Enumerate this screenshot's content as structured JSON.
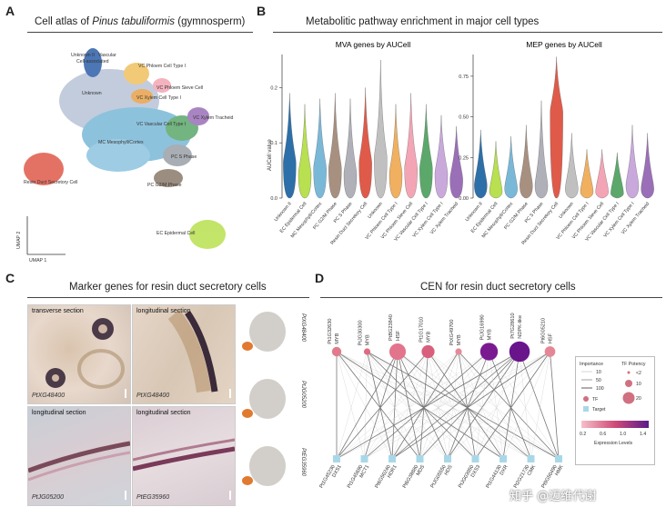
{
  "panel_a": {
    "letter": "A",
    "title_prefix": "Cell atlas of ",
    "title_italic": "Pinus tabuliformis",
    "title_suffix": " (gymnosperm)",
    "axis_y": "UMAP 2",
    "axis_x": "UMAP 1",
    "clusters": [
      {
        "label": "Unknown II",
        "color": "#2d5fa8"
      },
      {
        "label": "Vascular",
        "color": "#2d5fa8"
      },
      {
        "label": "Cell-associated",
        "color": "#2d5fa8"
      },
      {
        "label": "Unknown",
        "color": "#b8c4d6"
      },
      {
        "label": "VC Phloem Cell Type I",
        "color": "#f0c060"
      },
      {
        "label": "VC Phloem Sieve Cell",
        "color": "#f3a5b5"
      },
      {
        "label": "VC Xylem Cell Type I",
        "color": "#e7a04a"
      },
      {
        "label": "VC Xylem Tracheid",
        "color": "#9b6fb8"
      },
      {
        "label": "VC Vascular Cell Type I",
        "color": "#5ba86a"
      },
      {
        "label": "MC Mesophyll/Cortex",
        "color": "#7ab8d8"
      },
      {
        "label": "PC S Phase",
        "color": "#9aa0a6"
      },
      {
        "label": "PC G2/M Phase",
        "color": "#8a7a6a"
      },
      {
        "label": "Resin Duct Secretory Cell",
        "color": "#e05a4a"
      },
      {
        "label": "EC Epidermal Cell",
        "color": "#b8e050"
      }
    ]
  },
  "panel_b": {
    "letter": "B",
    "title": "Metabolitic pathway enrichment in major cell types",
    "ylabel": "AUCell value",
    "chart_data": [
      {
        "type": "violin",
        "title": "MVA genes by AUCell",
        "ylim": [
          0,
          0.25
        ],
        "yticks": [
          "0.0",
          "0.1",
          "0.2"
        ],
        "categories": [
          "Unknown II",
          "EC Epidermal Cell",
          "MC Mesophyll/Cortex",
          "PC G2/M Phase",
          "PC S Phase",
          "Resin Duct Secretory Cell",
          "Unknown",
          "VC Phloem Cell Type I",
          "VC Phloem Sieve Cell",
          "VC Vascular Cell Type I",
          "VC Xylem Cell Type I",
          "VC Xylem Tracheid"
        ],
        "max": [
          0.19,
          0.17,
          0.18,
          0.19,
          0.18,
          0.2,
          0.25,
          0.17,
          0.19,
          0.17,
          0.15,
          0.13
        ],
        "center": [
          0.07,
          0.05,
          0.06,
          0.06,
          0.05,
          0.07,
          0.08,
          0.05,
          0.06,
          0.06,
          0.05,
          0.04
        ],
        "colors": [
          "#2d6fa8",
          "#b8e050",
          "#7ab8d8",
          "#a89080",
          "#b0b0b8",
          "#e05a4a",
          "#c0c0c0",
          "#f0b060",
          "#f3a5b5",
          "#5ba86a",
          "#c9a9dc",
          "#9b6fb8"
        ]
      },
      {
        "type": "violin",
        "title": "MEP genes by AUCell",
        "ylim": [
          0,
          0.85
        ],
        "yticks": [
          "0.00",
          "0.25",
          "0.50",
          "0.75"
        ],
        "categories": [
          "Unknown II",
          "EC Epidermal Cell",
          "MC Mesophyll/Cortex",
          "PC G2/M Phase",
          "PC S Phase",
          "Resin Duct Secretory Cell",
          "Unknown",
          "VC Phloem Cell Type I",
          "VC Phloem Sieve Cell",
          "VC Vascular Cell Type I",
          "VC Xylem Cell Type I",
          "VC Xylem Tracheid"
        ],
        "max": [
          0.42,
          0.35,
          0.38,
          0.45,
          0.6,
          0.87,
          0.4,
          0.3,
          0.3,
          0.28,
          0.45,
          0.4
        ],
        "center": [
          0.1,
          0.06,
          0.08,
          0.1,
          0.1,
          0.55,
          0.08,
          0.06,
          0.06,
          0.05,
          0.1,
          0.08
        ],
        "colors": [
          "#2d6fa8",
          "#b8e050",
          "#7ab8d8",
          "#a89080",
          "#b0b0b8",
          "#e05a4a",
          "#c0c0c0",
          "#f0b060",
          "#f3a5b5",
          "#5ba86a",
          "#c9a9dc",
          "#9b6fb8"
        ]
      }
    ]
  },
  "panel_c": {
    "letter": "C",
    "title": "Marker genes for resin duct secretory cells",
    "images": [
      {
        "header": "transverse section",
        "gene": "PtXG48400"
      },
      {
        "header": "longitudinal section",
        "gene": "PtXG48400"
      },
      {
        "header": "longitudinal section",
        "gene": "PtJG05200"
      },
      {
        "header": "longitudinal section",
        "gene": "PtEG35960"
      }
    ],
    "umap_genes": [
      "PtXG48400",
      "PtJG05200",
      "PtEG35960"
    ]
  },
  "panel_d": {
    "letter": "D",
    "title": "CEN for resin duct secretory cells",
    "tfs": [
      {
        "id": "Pt1G32630",
        "name": "MYB",
        "size": 1
      },
      {
        "id": "PtJG30300",
        "name": "MYB",
        "size": 0.5
      },
      {
        "id": "PtBG23840",
        "name": "HSF",
        "size": 2.2
      },
      {
        "id": "Pt1G17010",
        "name": "MYB",
        "size": 1.6
      },
      {
        "id": "PtXG49700",
        "name": "MYB",
        "size": 0.5
      },
      {
        "id": "PtJG16990",
        "name": "MYB",
        "size": 2.4
      },
      {
        "id": "Pt7G28610",
        "name": "NDPK-like",
        "size": 2.9
      },
      {
        "id": "Pt6G05210",
        "name": "HSF",
        "size": 1.2
      }
    ],
    "targets": [
      {
        "id": "Pt1G45230",
        "name": "DXS1"
      },
      {
        "id": "Pt1G45690",
        "name": "MCT1"
      },
      {
        "id": "Pt6G50240",
        "name": "HDR1"
      },
      {
        "id": "Pt6G38880",
        "name": "MDS"
      },
      {
        "id": "PtJG05550",
        "name": "HDS"
      },
      {
        "id": "PtJG03950",
        "name": "DXS3"
      },
      {
        "id": "Pt1G44130",
        "name": "DXR"
      },
      {
        "id": "Pt2G21730",
        "name": "CMK"
      },
      {
        "id": "Pt9G50490",
        "name": "HMK"
      }
    ],
    "legend": {
      "importance_title": "Importance",
      "importance_values": [
        "10",
        "50",
        "100"
      ],
      "potency_title": "TF Potency",
      "potency_values": [
        "<2",
        "10",
        "20"
      ],
      "tf_label": "TF",
      "target_label": "Target",
      "colorbar_ticks": [
        "0.2",
        "0.6",
        "1.0",
        "1.4"
      ],
      "colorbar_title": "Expression Levels"
    },
    "watermark": "知乎 @迈维代谢"
  }
}
